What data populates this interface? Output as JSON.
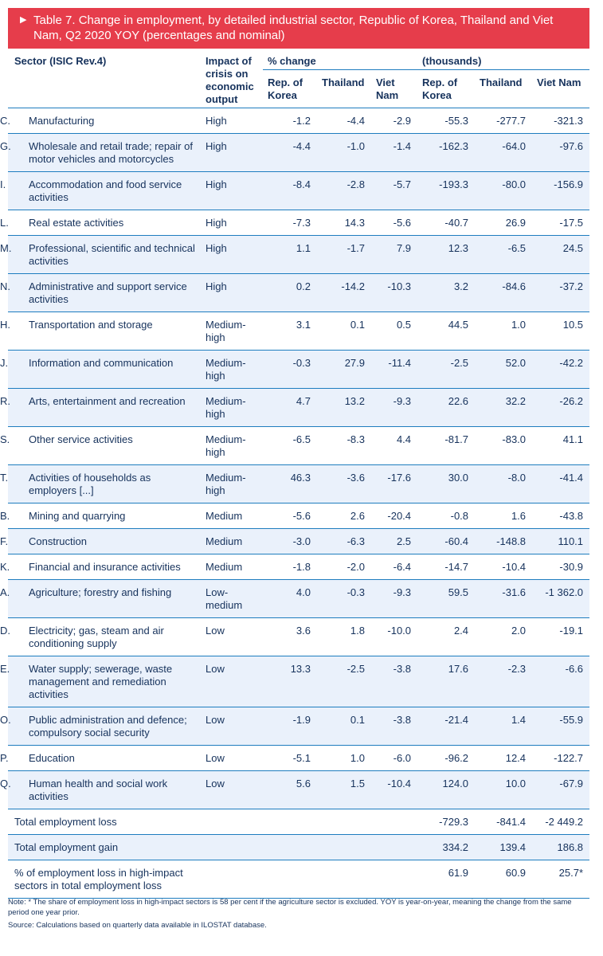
{
  "banner": {
    "icon": "triangle-right-icon",
    "title": "Table 7. Change in employment, by detailed industrial sector, Republic of Korea, Thailand and Viet Nam, Q2 2020 YOY (percentages and nominal)"
  },
  "header": {
    "sector": "Sector (ISIC Rev.4)",
    "impact": "Impact of crisis on economic output",
    "pct_group": "% change",
    "thou_group": "(thousands)",
    "pct_cols": [
      "Rep. of Korea",
      "Thailand",
      "Viet Nam"
    ],
    "thou_cols": [
      "Rep. of Korea",
      "Thailand",
      "Viet Nam"
    ]
  },
  "rows": [
    {
      "code": "C.",
      "sector": "Manufacturing",
      "impact": "High",
      "pct": [
        "-1.2",
        "-4.4",
        "-2.9"
      ],
      "thou": [
        "-55.3",
        "-277.7",
        "-321.3"
      ]
    },
    {
      "code": "G.",
      "sector": "Wholesale and retail trade; repair of motor vehicles and motorcycles",
      "impact": "High",
      "pct": [
        "-4.4",
        "-1.0",
        "-1.4"
      ],
      "thou": [
        "-162.3",
        "-64.0",
        "-97.6"
      ]
    },
    {
      "code": "I.",
      "sector": "Accommodation and food service activities",
      "impact": "High",
      "pct": [
        "-8.4",
        "-2.8",
        "-5.7"
      ],
      "thou": [
        "-193.3",
        "-80.0",
        "-156.9"
      ]
    },
    {
      "code": "L.",
      "sector": "Real estate activities",
      "impact": "High",
      "pct": [
        "-7.3",
        "14.3",
        "-5.6"
      ],
      "thou": [
        "-40.7",
        "26.9",
        "-17.5"
      ]
    },
    {
      "code": "M.",
      "sector": "Professional, scientific and technical activities",
      "impact": "High",
      "pct": [
        "1.1",
        "-1.7",
        "7.9"
      ],
      "thou": [
        "12.3",
        "-6.5",
        "24.5"
      ]
    },
    {
      "code": "N.",
      "sector": "Administrative and support service activities",
      "impact": "High",
      "pct": [
        "0.2",
        "-14.2",
        "-10.3"
      ],
      "thou": [
        "3.2",
        "-84.6",
        "-37.2"
      ]
    },
    {
      "code": "H.",
      "sector": "Transportation and storage",
      "impact": "Medium-high",
      "pct": [
        "3.1",
        "0.1",
        "0.5"
      ],
      "thou": [
        "44.5",
        "1.0",
        "10.5"
      ]
    },
    {
      "code": "J.",
      "sector": "Information and communication",
      "impact": "Medium-high",
      "pct": [
        "-0.3",
        "27.9",
        "-11.4"
      ],
      "thou": [
        "-2.5",
        "52.0",
        "-42.2"
      ]
    },
    {
      "code": "R.",
      "sector": "Arts, entertainment and recreation",
      "impact": "Medium-high",
      "pct": [
        "4.7",
        "13.2",
        "-9.3"
      ],
      "thou": [
        "22.6",
        "32.2",
        "-26.2"
      ]
    },
    {
      "code": "S.",
      "sector": "Other service activities",
      "impact": "Medium-high",
      "pct": [
        "-6.5",
        "-8.3",
        "4.4"
      ],
      "thou": [
        "-81.7",
        "-83.0",
        "41.1"
      ]
    },
    {
      "code": "T.",
      "sector": "Activities of households as employers [...]",
      "impact": "Medium-high",
      "pct": [
        "46.3",
        "-3.6",
        "-17.6"
      ],
      "thou": [
        "30.0",
        "-8.0",
        "-41.4"
      ]
    },
    {
      "code": "B.",
      "sector": "Mining and quarrying",
      "impact": "Medium",
      "pct": [
        "-5.6",
        "2.6",
        "-20.4"
      ],
      "thou": [
        "-0.8",
        "1.6",
        "-43.8"
      ]
    },
    {
      "code": "F.",
      "sector": "Construction",
      "impact": "Medium",
      "pct": [
        "-3.0",
        "-6.3",
        "2.5"
      ],
      "thou": [
        "-60.4",
        "-148.8",
        "110.1"
      ]
    },
    {
      "code": "K.",
      "sector": "Financial and insurance activities",
      "impact": "Medium",
      "pct": [
        "-1.8",
        "-2.0",
        "-6.4"
      ],
      "thou": [
        "-14.7",
        "-10.4",
        "-30.9"
      ]
    },
    {
      "code": "A.",
      "sector": "Agriculture; forestry and fishing",
      "impact": "Low-medium",
      "pct": [
        "4.0",
        "-0.3",
        "-9.3"
      ],
      "thou": [
        "59.5",
        "-31.6",
        "-1 362.0"
      ]
    },
    {
      "code": "D.",
      "sector": "Electricity; gas, steam and air conditioning supply",
      "impact": "Low",
      "pct": [
        "3.6",
        "1.8",
        "-10.0"
      ],
      "thou": [
        "2.4",
        "2.0",
        "-19.1"
      ]
    },
    {
      "code": "E.",
      "sector": "Water supply; sewerage, waste management and remediation activities",
      "impact": "Low",
      "pct": [
        "13.3",
        "-2.5",
        "-3.8"
      ],
      "thou": [
        "17.6",
        "-2.3",
        "-6.6"
      ]
    },
    {
      "code": "O.",
      "sector": "Public administration and defence; compulsory social security",
      "impact": "Low",
      "pct": [
        "-1.9",
        "0.1",
        "-3.8"
      ],
      "thou": [
        "-21.4",
        "1.4",
        "-55.9"
      ]
    },
    {
      "code": "P.",
      "sector": "Education",
      "impact": "Low",
      "pct": [
        "-5.1",
        "1.0",
        "-6.0"
      ],
      "thou": [
        "-96.2",
        "12.4",
        "-122.7"
      ]
    },
    {
      "code": "Q.",
      "sector": "Human health and social work activities",
      "impact": "Low",
      "pct": [
        "5.6",
        "1.5",
        "-10.4"
      ],
      "thou": [
        "124.0",
        "10.0",
        "-67.9"
      ]
    }
  ],
  "totals": [
    {
      "label": "Total employment loss",
      "thou": [
        "-729.3",
        "-841.4",
        "-2 449.2"
      ]
    },
    {
      "label": "Total employment gain",
      "thou": [
        "334.2",
        "139.4",
        "186.8"
      ]
    },
    {
      "label": "% of employment loss in high-impact sectors in total employment loss",
      "thou": [
        "61.9",
        "60.9",
        "25.7*"
      ]
    }
  ],
  "notes": {
    "note": "Note: * The share of employment loss in high-impact sectors is 58 per cent if the agriculture sector is excluded. YOY is year-on-year, meaning the change from the same period one year prior.",
    "source": "Source: Calculations based on quarterly data available in ILOSTAT database."
  },
  "colors": {
    "banner": "#e63d4b",
    "rule": "#1e7dbf",
    "shade": "#eaf1fb",
    "text": "#16325c"
  }
}
